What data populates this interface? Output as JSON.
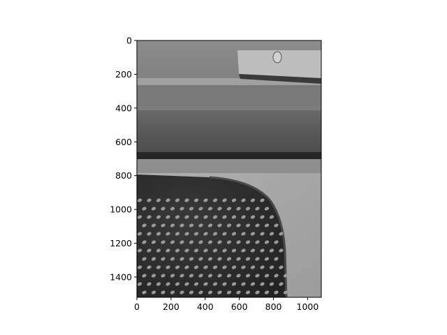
{
  "chart_data": {
    "type": "image",
    "colormap": "gray",
    "title": "",
    "xlabel": "",
    "ylabel": "",
    "xlim": [
      0,
      1080
    ],
    "ylim": [
      1520,
      0
    ],
    "x_ticks": [
      0,
      200,
      400,
      600,
      800,
      1000
    ],
    "y_ticks": [
      0,
      200,
      400,
      600,
      800,
      1000,
      1200,
      1400
    ],
    "image_extent": {
      "width": 1080,
      "height": 1520
    },
    "scene": {
      "wall_gray": "#8a8a8a",
      "shelf_wood": "#5e5e5e",
      "floor_gray": "#a8a8a8",
      "chair_dark": "#2f2f2f",
      "hole_light": "#9a9a9a"
    }
  }
}
